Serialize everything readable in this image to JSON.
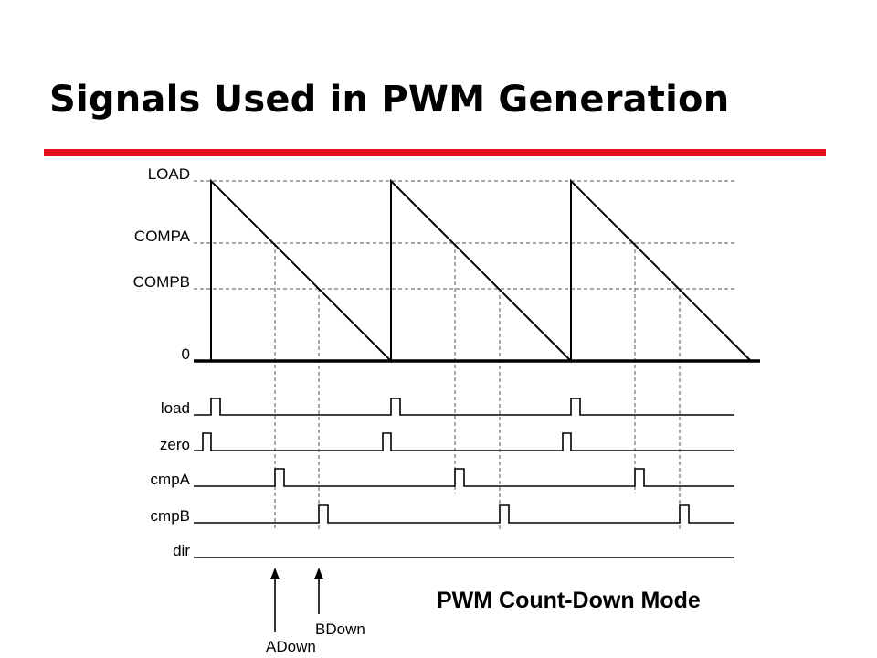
{
  "slide": {
    "title": "Signals Used in PWM Generation",
    "accent_color": "#e8101a"
  },
  "diagram": {
    "levels": {
      "load": "LOAD",
      "compa": "COMPA",
      "compb": "COMPB",
      "zero": "0"
    },
    "signals": {
      "load": "load",
      "zero": "zero",
      "cmpa": "cmpA",
      "cmpb": "cmpB",
      "dir": "dir"
    },
    "events": {
      "adown": "ADown",
      "bdown": "BDown"
    },
    "caption": "PWM Count-Down Mode"
  }
}
